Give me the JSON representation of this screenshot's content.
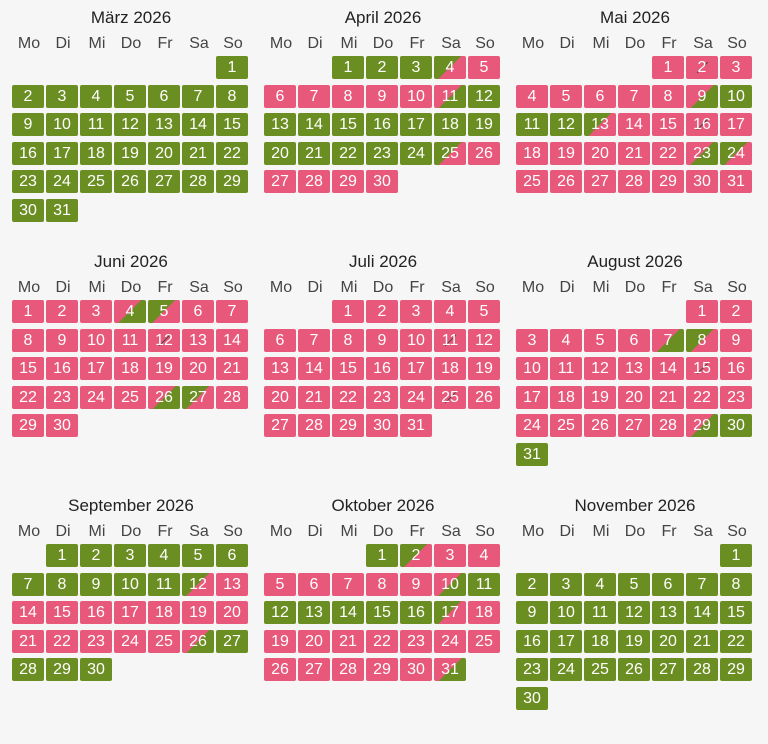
{
  "colors": {
    "free": "#6b8e23",
    "booked": "#e8587a",
    "background": "#f6f6f6"
  },
  "weekdays": [
    "Mo",
    "Di",
    "Mi",
    "Do",
    "Fr",
    "Sa",
    "So"
  ],
  "months": [
    {
      "title": "März 2026",
      "days": [
        {
          "d": "1",
          "s": "free"
        },
        {
          "d": "2",
          "s": "free"
        },
        {
          "d": "3",
          "s": "free"
        },
        {
          "d": "4",
          "s": "free"
        },
        {
          "d": "5",
          "s": "free"
        },
        {
          "d": "6",
          "s": "free"
        },
        {
          "d": "7",
          "s": "free"
        },
        {
          "d": "8",
          "s": "free"
        },
        {
          "d": "9",
          "s": "free"
        },
        {
          "d": "10",
          "s": "free"
        },
        {
          "d": "11",
          "s": "free"
        },
        {
          "d": "12",
          "s": "free"
        },
        {
          "d": "13",
          "s": "free"
        },
        {
          "d": "14",
          "s": "free"
        },
        {
          "d": "15",
          "s": "free"
        },
        {
          "d": "16",
          "s": "free"
        },
        {
          "d": "17",
          "s": "free"
        },
        {
          "d": "18",
          "s": "free"
        },
        {
          "d": "19",
          "s": "free"
        },
        {
          "d": "20",
          "s": "free"
        },
        {
          "d": "21",
          "s": "free"
        },
        {
          "d": "22",
          "s": "free"
        },
        {
          "d": "23",
          "s": "free"
        },
        {
          "d": "24",
          "s": "free"
        },
        {
          "d": "25",
          "s": "free"
        },
        {
          "d": "26",
          "s": "free"
        },
        {
          "d": "27",
          "s": "free"
        },
        {
          "d": "28",
          "s": "free"
        },
        {
          "d": "29",
          "s": "free"
        },
        {
          "d": "30",
          "s": "free"
        },
        {
          "d": "31",
          "s": "free"
        }
      ]
    },
    {
      "title": "April 2026",
      "days": [
        {
          "d": "1",
          "s": "free"
        },
        {
          "d": "2",
          "s": "free"
        },
        {
          "d": "3",
          "s": "free"
        },
        {
          "d": "4",
          "s": "free-booked"
        },
        {
          "d": "5",
          "s": "booked"
        },
        {
          "d": "6",
          "s": "booked"
        },
        {
          "d": "7",
          "s": "booked"
        },
        {
          "d": "8",
          "s": "booked"
        },
        {
          "d": "9",
          "s": "booked"
        },
        {
          "d": "10",
          "s": "booked"
        },
        {
          "d": "11",
          "s": "booked-free"
        },
        {
          "d": "12",
          "s": "free"
        },
        {
          "d": "13",
          "s": "free"
        },
        {
          "d": "14",
          "s": "free"
        },
        {
          "d": "15",
          "s": "free"
        },
        {
          "d": "16",
          "s": "free"
        },
        {
          "d": "17",
          "s": "free"
        },
        {
          "d": "18",
          "s": "free"
        },
        {
          "d": "19",
          "s": "free"
        },
        {
          "d": "20",
          "s": "free"
        },
        {
          "d": "21",
          "s": "free"
        },
        {
          "d": "22",
          "s": "free"
        },
        {
          "d": "23",
          "s": "free"
        },
        {
          "d": "24",
          "s": "free"
        },
        {
          "d": "25",
          "s": "free-booked"
        },
        {
          "d": "26",
          "s": "booked"
        },
        {
          "d": "27",
          "s": "booked"
        },
        {
          "d": "28",
          "s": "booked"
        },
        {
          "d": "29",
          "s": "booked"
        },
        {
          "d": "30",
          "s": "booked"
        }
      ]
    },
    {
      "title": "Mai 2026",
      "days": [
        {
          "d": "1",
          "s": "booked"
        },
        {
          "d": "2",
          "s": "booked",
          "x": true
        },
        {
          "d": "3",
          "s": "booked"
        },
        {
          "d": "4",
          "s": "booked"
        },
        {
          "d": "5",
          "s": "booked"
        },
        {
          "d": "6",
          "s": "booked"
        },
        {
          "d": "7",
          "s": "booked"
        },
        {
          "d": "8",
          "s": "booked"
        },
        {
          "d": "9",
          "s": "booked-free"
        },
        {
          "d": "10",
          "s": "free"
        },
        {
          "d": "11",
          "s": "free"
        },
        {
          "d": "12",
          "s": "free"
        },
        {
          "d": "13",
          "s": "free-booked"
        },
        {
          "d": "14",
          "s": "booked"
        },
        {
          "d": "15",
          "s": "booked"
        },
        {
          "d": "16",
          "s": "booked",
          "x": true
        },
        {
          "d": "17",
          "s": "booked"
        },
        {
          "d": "18",
          "s": "booked"
        },
        {
          "d": "19",
          "s": "booked"
        },
        {
          "d": "20",
          "s": "booked"
        },
        {
          "d": "21",
          "s": "booked"
        },
        {
          "d": "22",
          "s": "booked"
        },
        {
          "d": "23",
          "s": "booked-free"
        },
        {
          "d": "24",
          "s": "free-booked"
        },
        {
          "d": "25",
          "s": "booked"
        },
        {
          "d": "26",
          "s": "booked"
        },
        {
          "d": "27",
          "s": "booked"
        },
        {
          "d": "28",
          "s": "booked"
        },
        {
          "d": "29",
          "s": "booked"
        },
        {
          "d": "30",
          "s": "booked"
        },
        {
          "d": "31",
          "s": "booked"
        }
      ]
    },
    {
      "title": "Juni 2026",
      "days": [
        {
          "d": "1",
          "s": "booked"
        },
        {
          "d": "2",
          "s": "booked"
        },
        {
          "d": "3",
          "s": "booked"
        },
        {
          "d": "4",
          "s": "booked-free"
        },
        {
          "d": "5",
          "s": "free-booked"
        },
        {
          "d": "6",
          "s": "booked"
        },
        {
          "d": "7",
          "s": "booked"
        },
        {
          "d": "8",
          "s": "booked"
        },
        {
          "d": "9",
          "s": "booked"
        },
        {
          "d": "10",
          "s": "booked"
        },
        {
          "d": "11",
          "s": "booked"
        },
        {
          "d": "12",
          "s": "booked",
          "x": true
        },
        {
          "d": "13",
          "s": "booked"
        },
        {
          "d": "14",
          "s": "booked"
        },
        {
          "d": "15",
          "s": "booked"
        },
        {
          "d": "16",
          "s": "booked"
        },
        {
          "d": "17",
          "s": "booked"
        },
        {
          "d": "18",
          "s": "booked"
        },
        {
          "d": "19",
          "s": "booked"
        },
        {
          "d": "20",
          "s": "booked"
        },
        {
          "d": "21",
          "s": "booked"
        },
        {
          "d": "22",
          "s": "booked"
        },
        {
          "d": "23",
          "s": "booked"
        },
        {
          "d": "24",
          "s": "booked"
        },
        {
          "d": "25",
          "s": "booked"
        },
        {
          "d": "26",
          "s": "booked-free"
        },
        {
          "d": "27",
          "s": "free-booked"
        },
        {
          "d": "28",
          "s": "booked"
        },
        {
          "d": "29",
          "s": "booked"
        },
        {
          "d": "30",
          "s": "booked"
        }
      ]
    },
    {
      "title": "Juli 2026",
      "days": [
        {
          "d": "1",
          "s": "booked"
        },
        {
          "d": "2",
          "s": "booked"
        },
        {
          "d": "3",
          "s": "booked"
        },
        {
          "d": "4",
          "s": "booked"
        },
        {
          "d": "5",
          "s": "booked"
        },
        {
          "d": "6",
          "s": "booked"
        },
        {
          "d": "7",
          "s": "booked"
        },
        {
          "d": "8",
          "s": "booked"
        },
        {
          "d": "9",
          "s": "booked"
        },
        {
          "d": "10",
          "s": "booked"
        },
        {
          "d": "11",
          "s": "booked",
          "x": true
        },
        {
          "d": "12",
          "s": "booked"
        },
        {
          "d": "13",
          "s": "booked"
        },
        {
          "d": "14",
          "s": "booked"
        },
        {
          "d": "15",
          "s": "booked"
        },
        {
          "d": "16",
          "s": "booked"
        },
        {
          "d": "17",
          "s": "booked"
        },
        {
          "d": "18",
          "s": "booked"
        },
        {
          "d": "19",
          "s": "booked"
        },
        {
          "d": "20",
          "s": "booked"
        },
        {
          "d": "21",
          "s": "booked"
        },
        {
          "d": "22",
          "s": "booked"
        },
        {
          "d": "23",
          "s": "booked"
        },
        {
          "d": "24",
          "s": "booked"
        },
        {
          "d": "25",
          "s": "booked",
          "x": true
        },
        {
          "d": "26",
          "s": "booked"
        },
        {
          "d": "27",
          "s": "booked"
        },
        {
          "d": "28",
          "s": "booked"
        },
        {
          "d": "29",
          "s": "booked"
        },
        {
          "d": "30",
          "s": "booked"
        },
        {
          "d": "31",
          "s": "booked"
        }
      ]
    },
    {
      "title": "August 2026",
      "days": [
        {
          "d": "1",
          "s": "booked"
        },
        {
          "d": "2",
          "s": "booked"
        },
        {
          "d": "3",
          "s": "booked"
        },
        {
          "d": "4",
          "s": "booked"
        },
        {
          "d": "5",
          "s": "booked"
        },
        {
          "d": "6",
          "s": "booked"
        },
        {
          "d": "7",
          "s": "booked-free"
        },
        {
          "d": "8",
          "s": "free-booked"
        },
        {
          "d": "9",
          "s": "booked"
        },
        {
          "d": "10",
          "s": "booked"
        },
        {
          "d": "11",
          "s": "booked"
        },
        {
          "d": "12",
          "s": "booked"
        },
        {
          "d": "13",
          "s": "booked"
        },
        {
          "d": "14",
          "s": "booked"
        },
        {
          "d": "15",
          "s": "booked",
          "x": true
        },
        {
          "d": "16",
          "s": "booked"
        },
        {
          "d": "17",
          "s": "booked"
        },
        {
          "d": "18",
          "s": "booked"
        },
        {
          "d": "19",
          "s": "booked"
        },
        {
          "d": "20",
          "s": "booked"
        },
        {
          "d": "21",
          "s": "booked"
        },
        {
          "d": "22",
          "s": "booked"
        },
        {
          "d": "23",
          "s": "booked"
        },
        {
          "d": "24",
          "s": "booked"
        },
        {
          "d": "25",
          "s": "booked"
        },
        {
          "d": "26",
          "s": "booked"
        },
        {
          "d": "27",
          "s": "booked"
        },
        {
          "d": "28",
          "s": "booked"
        },
        {
          "d": "29",
          "s": "booked-free"
        },
        {
          "d": "30",
          "s": "free"
        },
        {
          "d": "31",
          "s": "free"
        }
      ]
    },
    {
      "title": "September 2026",
      "days": [
        {
          "d": "1",
          "s": "free"
        },
        {
          "d": "2",
          "s": "free"
        },
        {
          "d": "3",
          "s": "free"
        },
        {
          "d": "4",
          "s": "free"
        },
        {
          "d": "5",
          "s": "free"
        },
        {
          "d": "6",
          "s": "free"
        },
        {
          "d": "7",
          "s": "free"
        },
        {
          "d": "8",
          "s": "free"
        },
        {
          "d": "9",
          "s": "free"
        },
        {
          "d": "10",
          "s": "free"
        },
        {
          "d": "11",
          "s": "free"
        },
        {
          "d": "12",
          "s": "free-booked"
        },
        {
          "d": "13",
          "s": "booked"
        },
        {
          "d": "14",
          "s": "booked"
        },
        {
          "d": "15",
          "s": "booked"
        },
        {
          "d": "16",
          "s": "booked"
        },
        {
          "d": "17",
          "s": "booked"
        },
        {
          "d": "18",
          "s": "booked"
        },
        {
          "d": "19",
          "s": "booked"
        },
        {
          "d": "20",
          "s": "booked"
        },
        {
          "d": "21",
          "s": "booked"
        },
        {
          "d": "22",
          "s": "booked"
        },
        {
          "d": "23",
          "s": "booked"
        },
        {
          "d": "24",
          "s": "booked"
        },
        {
          "d": "25",
          "s": "booked"
        },
        {
          "d": "26",
          "s": "booked-free"
        },
        {
          "d": "27",
          "s": "free"
        },
        {
          "d": "28",
          "s": "free"
        },
        {
          "d": "29",
          "s": "free"
        },
        {
          "d": "30",
          "s": "free"
        }
      ]
    },
    {
      "title": "Oktober 2026",
      "days": [
        {
          "d": "1",
          "s": "free"
        },
        {
          "d": "2",
          "s": "free-booked"
        },
        {
          "d": "3",
          "s": "booked"
        },
        {
          "d": "4",
          "s": "booked"
        },
        {
          "d": "5",
          "s": "booked"
        },
        {
          "d": "6",
          "s": "booked"
        },
        {
          "d": "7",
          "s": "booked"
        },
        {
          "d": "8",
          "s": "booked"
        },
        {
          "d": "9",
          "s": "booked"
        },
        {
          "d": "10",
          "s": "booked-free"
        },
        {
          "d": "11",
          "s": "free"
        },
        {
          "d": "12",
          "s": "free"
        },
        {
          "d": "13",
          "s": "free"
        },
        {
          "d": "14",
          "s": "free"
        },
        {
          "d": "15",
          "s": "free"
        },
        {
          "d": "16",
          "s": "free"
        },
        {
          "d": "17",
          "s": "free-booked"
        },
        {
          "d": "18",
          "s": "booked"
        },
        {
          "d": "19",
          "s": "booked"
        },
        {
          "d": "20",
          "s": "booked"
        },
        {
          "d": "21",
          "s": "booked"
        },
        {
          "d": "22",
          "s": "booked"
        },
        {
          "d": "23",
          "s": "booked"
        },
        {
          "d": "24",
          "s": "booked"
        },
        {
          "d": "25",
          "s": "booked"
        },
        {
          "d": "26",
          "s": "booked"
        },
        {
          "d": "27",
          "s": "booked"
        },
        {
          "d": "28",
          "s": "booked"
        },
        {
          "d": "29",
          "s": "booked"
        },
        {
          "d": "30",
          "s": "booked"
        },
        {
          "d": "31",
          "s": "booked-free"
        }
      ]
    },
    {
      "title": "November 2026",
      "days": [
        {
          "d": "1",
          "s": "free"
        },
        {
          "d": "2",
          "s": "free"
        },
        {
          "d": "3",
          "s": "free"
        },
        {
          "d": "4",
          "s": "free"
        },
        {
          "d": "5",
          "s": "free"
        },
        {
          "d": "6",
          "s": "free"
        },
        {
          "d": "7",
          "s": "free"
        },
        {
          "d": "8",
          "s": "free"
        },
        {
          "d": "9",
          "s": "free"
        },
        {
          "d": "10",
          "s": "free"
        },
        {
          "d": "11",
          "s": "free"
        },
        {
          "d": "12",
          "s": "free"
        },
        {
          "d": "13",
          "s": "free"
        },
        {
          "d": "14",
          "s": "free"
        },
        {
          "d": "15",
          "s": "free"
        },
        {
          "d": "16",
          "s": "free"
        },
        {
          "d": "17",
          "s": "free"
        },
        {
          "d": "18",
          "s": "free"
        },
        {
          "d": "19",
          "s": "free"
        },
        {
          "d": "20",
          "s": "free"
        },
        {
          "d": "21",
          "s": "free"
        },
        {
          "d": "22",
          "s": "free"
        },
        {
          "d": "23",
          "s": "free"
        },
        {
          "d": "24",
          "s": "free"
        },
        {
          "d": "25",
          "s": "free"
        },
        {
          "d": "26",
          "s": "free"
        },
        {
          "d": "27",
          "s": "free"
        },
        {
          "d": "28",
          "s": "free"
        },
        {
          "d": "29",
          "s": "free"
        },
        {
          "d": "30",
          "s": "free"
        }
      ]
    }
  ]
}
